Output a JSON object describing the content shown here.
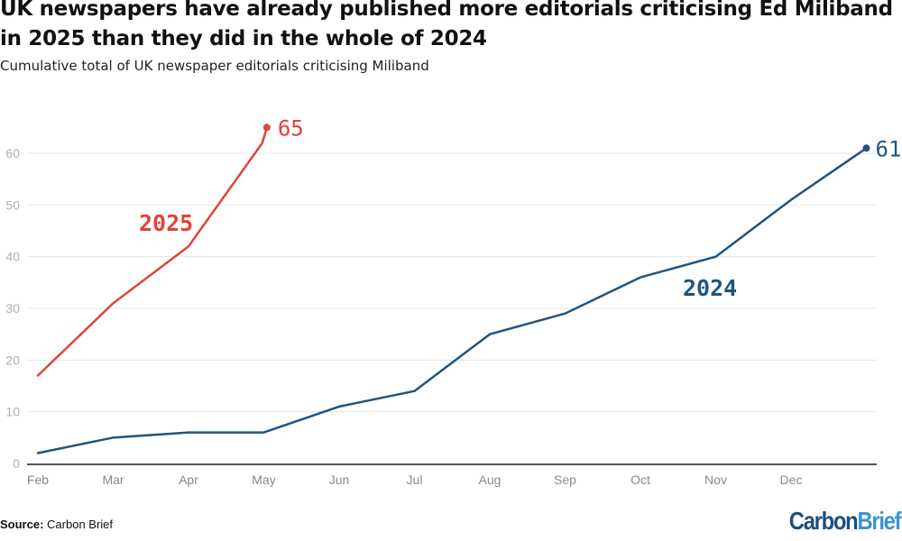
{
  "header": {
    "title": "UK newspapers have already published more editorials criticising Ed Miliband in 2025 than they did in the whole of 2024",
    "subtitle": "Cumulative total of UK newspaper editorials criticising Miliband"
  },
  "footer": {
    "source_label": "Source:",
    "source_text": "Carbon Brief",
    "logo_part1": "Carbon",
    "logo_part2": "Brief"
  },
  "colors": {
    "series_2025": "#e0433a",
    "series_2024": "#1f5481",
    "grid": "#e6e6e6",
    "axis": "#555555"
  },
  "chart_data": {
    "type": "line",
    "title": "UK newspapers have already published more editorials criticising Ed Miliband in 2025 than they did in the whole of 2024",
    "subtitle": "Cumulative total of UK newspaper editorials criticising Miliband",
    "xlabel": "",
    "ylabel": "",
    "categories": [
      "Feb",
      "Mar",
      "Apr",
      "May",
      "Jun",
      "Jul",
      "Aug",
      "Sep",
      "Oct",
      "Nov",
      "Dec"
    ],
    "x_range": [
      0,
      11
    ],
    "ylim": [
      0,
      65
    ],
    "yticks": [
      0,
      10,
      20,
      30,
      40,
      50,
      60
    ],
    "grid": true,
    "legend": "inline-labels",
    "series": [
      {
        "name": "2024",
        "label": "2024",
        "end_label": "61",
        "x": [
          0,
          1,
          2,
          3,
          4,
          5,
          6,
          7,
          8,
          9,
          10,
          11
        ],
        "values": [
          2,
          5,
          6,
          6,
          11,
          14,
          25,
          29,
          36,
          40,
          51,
          61
        ]
      },
      {
        "name": "2025",
        "label": "2025",
        "end_label": "65",
        "x": [
          0,
          1,
          2,
          2.98,
          3.04
        ],
        "values": [
          17,
          31,
          42,
          62,
          65
        ]
      }
    ]
  }
}
